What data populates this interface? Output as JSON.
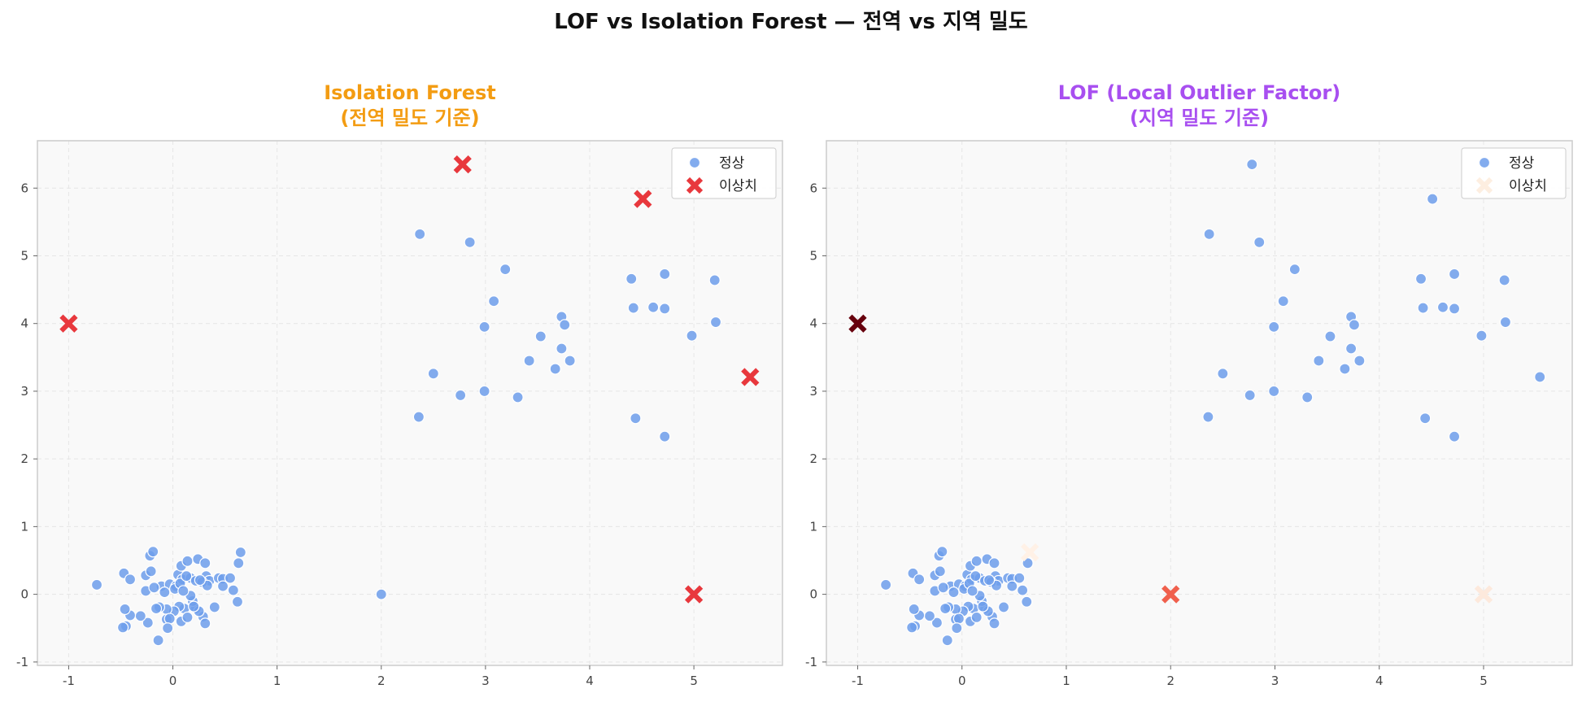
{
  "figure": {
    "suptitle": "LOF vs Isolation Forest — 전역 vs 지역 밀도"
  },
  "colors": {
    "normal": "#6d9eeb",
    "outlier": "#e8383d",
    "panel_bg": "#f9f9f9",
    "grid": "#e6e6e6",
    "frame": "#cccccc"
  },
  "chart_data": [
    {
      "type": "scatter",
      "title_line1": "Isolation Forest",
      "title_line2": "(전역 밀도 기준)",
      "title_color": "#f39c12",
      "xlim": [
        -1.3,
        5.85
      ],
      "ylim": [
        -1.05,
        6.7
      ],
      "xticks": [
        -1,
        0,
        1,
        2,
        3,
        4,
        5
      ],
      "yticks": [
        -1,
        0,
        1,
        2,
        3,
        4,
        5,
        6
      ],
      "grid": true,
      "legend": {
        "position": "top-right",
        "entries": [
          {
            "label": "정상",
            "marker": "circle",
            "color": "#6d9eeb"
          },
          {
            "label": "이상치",
            "marker": "x",
            "color": "#e8383d"
          }
        ]
      },
      "series": [
        {
          "name": "정상",
          "marker": "circle",
          "color": "#6d9eeb",
          "points": [
            [
              -0.73,
              0.14
            ],
            [
              -0.47,
              0.31
            ],
            [
              -0.41,
              0.22
            ],
            [
              -0.22,
              0.57
            ],
            [
              -0.19,
              0.63
            ],
            [
              -0.26,
              0.28
            ],
            [
              -0.21,
              0.34
            ],
            [
              -0.11,
              0.12
            ],
            [
              -0.03,
              0.15
            ],
            [
              0.03,
              0.12
            ],
            [
              0.05,
              0.29
            ],
            [
              0.08,
              0.42
            ],
            [
              0.09,
              0.22
            ],
            [
              0.14,
              0.49
            ],
            [
              0.17,
              0.24
            ],
            [
              0.24,
              0.52
            ],
            [
              0.31,
              0.46
            ],
            [
              0.32,
              0.27
            ],
            [
              0.35,
              0.2
            ],
            [
              0.44,
              0.24
            ],
            [
              0.48,
              0.23
            ],
            [
              0.55,
              0.24
            ],
            [
              0.63,
              0.46
            ],
            [
              0.65,
              0.62
            ],
            [
              -0.26,
              0.05
            ],
            [
              -0.08,
              0.03
            ],
            [
              0.02,
              0.08
            ],
            [
              0.07,
              0.16
            ],
            [
              0.13,
              0.27
            ],
            [
              0.22,
              0.2
            ],
            [
              0.28,
              0.18
            ],
            [
              0.33,
              0.13
            ],
            [
              0.48,
              0.12
            ],
            [
              0.58,
              0.06
            ],
            [
              0.62,
              -0.11
            ],
            [
              0.4,
              -0.19
            ],
            [
              0.29,
              -0.33
            ],
            [
              0.22,
              -0.21
            ],
            [
              0.19,
              -0.1
            ],
            [
              0.17,
              -0.02
            ],
            [
              0.11,
              -0.21
            ],
            [
              0.06,
              -0.18
            ],
            [
              0.01,
              -0.25
            ],
            [
              -0.06,
              -0.22
            ],
            [
              -0.13,
              -0.19
            ],
            [
              -0.16,
              -0.21
            ],
            [
              -0.24,
              -0.42
            ],
            [
              -0.31,
              -0.32
            ],
            [
              -0.41,
              -0.31
            ],
            [
              -0.46,
              -0.22
            ],
            [
              -0.45,
              -0.47
            ],
            [
              -0.48,
              -0.49
            ],
            [
              -0.06,
              -0.37
            ],
            [
              -0.03,
              -0.36
            ],
            [
              -0.05,
              -0.5
            ],
            [
              0.08,
              -0.4
            ],
            [
              0.14,
              -0.34
            ],
            [
              0.25,
              -0.25
            ],
            [
              0.31,
              -0.43
            ],
            [
              -0.14,
              -0.68
            ],
            [
              0.2,
              -0.18
            ],
            [
              0.26,
              0.21
            ],
            [
              0.1,
              0.05
            ],
            [
              -0.18,
              0.1
            ],
            [
              2.0,
              0.0
            ],
            [
              2.37,
              5.32
            ],
            [
              2.85,
              5.2
            ],
            [
              3.19,
              4.8
            ],
            [
              3.08,
              4.33
            ],
            [
              2.99,
              3.95
            ],
            [
              3.73,
              4.1
            ],
            [
              3.76,
              3.98
            ],
            [
              3.53,
              3.81
            ],
            [
              3.73,
              3.63
            ],
            [
              3.42,
              3.45
            ],
            [
              3.81,
              3.45
            ],
            [
              3.67,
              3.33
            ],
            [
              2.5,
              3.26
            ],
            [
              2.99,
              3.0
            ],
            [
              2.76,
              2.94
            ],
            [
              3.31,
              2.91
            ],
            [
              2.36,
              2.62
            ],
            [
              4.4,
              4.66
            ],
            [
              4.72,
              4.73
            ],
            [
              5.2,
              4.64
            ],
            [
              4.42,
              4.23
            ],
            [
              4.61,
              4.24
            ],
            [
              4.72,
              4.22
            ],
            [
              5.21,
              4.02
            ],
            [
              4.98,
              3.82
            ],
            [
              4.44,
              2.6
            ],
            [
              4.72,
              2.33
            ]
          ]
        },
        {
          "name": "이상치",
          "marker": "x",
          "color": "#e8383d",
          "points": [
            [
              -1.0,
              4.0
            ],
            [
              2.78,
              6.35
            ],
            [
              4.51,
              5.84
            ],
            [
              5.54,
              3.21
            ],
            [
              5.0,
              0.0
            ]
          ]
        }
      ]
    },
    {
      "type": "scatter",
      "title_line1": "LOF (Local Outlier Factor)",
      "title_line2": "(지역 밀도 기준)",
      "title_color": "#a84ff0",
      "xlim": [
        -1.3,
        5.85
      ],
      "ylim": [
        -1.05,
        6.7
      ],
      "xticks": [
        -1,
        0,
        1,
        2,
        3,
        4,
        5
      ],
      "yticks": [
        -1,
        0,
        1,
        2,
        3,
        4,
        5,
        6
      ],
      "grid": true,
      "legend": {
        "position": "top-right",
        "entries": [
          {
            "label": "정상",
            "marker": "circle",
            "color": "#6d9eeb"
          },
          {
            "label": "이상치",
            "marker": "x",
            "color": "#fdeee0"
          }
        ]
      },
      "series": [
        {
          "name": "정상",
          "marker": "circle",
          "color": "#6d9eeb",
          "points": [
            [
              -0.73,
              0.14
            ],
            [
              -0.47,
              0.31
            ],
            [
              -0.41,
              0.22
            ],
            [
              -0.22,
              0.57
            ],
            [
              -0.19,
              0.63
            ],
            [
              -0.26,
              0.28
            ],
            [
              -0.21,
              0.34
            ],
            [
              -0.11,
              0.12
            ],
            [
              -0.03,
              0.15
            ],
            [
              0.03,
              0.12
            ],
            [
              0.05,
              0.29
            ],
            [
              0.08,
              0.42
            ],
            [
              0.09,
              0.22
            ],
            [
              0.14,
              0.49
            ],
            [
              0.17,
              0.24
            ],
            [
              0.24,
              0.52
            ],
            [
              0.31,
              0.46
            ],
            [
              0.32,
              0.27
            ],
            [
              0.35,
              0.2
            ],
            [
              0.44,
              0.24
            ],
            [
              0.48,
              0.23
            ],
            [
              0.55,
              0.24
            ],
            [
              0.63,
              0.46
            ],
            [
              -0.26,
              0.05
            ],
            [
              -0.08,
              0.03
            ],
            [
              0.02,
              0.08
            ],
            [
              0.07,
              0.16
            ],
            [
              0.13,
              0.27
            ],
            [
              0.22,
              0.2
            ],
            [
              0.28,
              0.18
            ],
            [
              0.33,
              0.13
            ],
            [
              0.48,
              0.12
            ],
            [
              0.58,
              0.06
            ],
            [
              0.62,
              -0.11
            ],
            [
              0.4,
              -0.19
            ],
            [
              0.29,
              -0.33
            ],
            [
              0.22,
              -0.21
            ],
            [
              0.19,
              -0.1
            ],
            [
              0.17,
              -0.02
            ],
            [
              0.11,
              -0.21
            ],
            [
              0.06,
              -0.18
            ],
            [
              0.01,
              -0.25
            ],
            [
              -0.06,
              -0.22
            ],
            [
              -0.13,
              -0.19
            ],
            [
              -0.16,
              -0.21
            ],
            [
              -0.24,
              -0.42
            ],
            [
              -0.31,
              -0.32
            ],
            [
              -0.41,
              -0.31
            ],
            [
              -0.46,
              -0.22
            ],
            [
              -0.45,
              -0.47
            ],
            [
              -0.48,
              -0.49
            ],
            [
              -0.06,
              -0.37
            ],
            [
              -0.03,
              -0.36
            ],
            [
              -0.05,
              -0.5
            ],
            [
              0.08,
              -0.4
            ],
            [
              0.14,
              -0.34
            ],
            [
              0.25,
              -0.25
            ],
            [
              0.31,
              -0.43
            ],
            [
              -0.14,
              -0.68
            ],
            [
              0.2,
              -0.18
            ],
            [
              0.26,
              0.21
            ],
            [
              0.1,
              0.05
            ],
            [
              -0.18,
              0.1
            ],
            [
              2.37,
              5.32
            ],
            [
              2.85,
              5.2
            ],
            [
              3.19,
              4.8
            ],
            [
              3.08,
              4.33
            ],
            [
              2.99,
              3.95
            ],
            [
              3.73,
              4.1
            ],
            [
              3.76,
              3.98
            ],
            [
              3.53,
              3.81
            ],
            [
              3.73,
              3.63
            ],
            [
              3.42,
              3.45
            ],
            [
              3.81,
              3.45
            ],
            [
              3.67,
              3.33
            ],
            [
              2.5,
              3.26
            ],
            [
              2.99,
              3.0
            ],
            [
              2.76,
              2.94
            ],
            [
              3.31,
              2.91
            ],
            [
              2.36,
              2.62
            ],
            [
              4.4,
              4.66
            ],
            [
              4.72,
              4.73
            ],
            [
              5.2,
              4.64
            ],
            [
              4.42,
              4.23
            ],
            [
              4.61,
              4.24
            ],
            [
              4.72,
              4.22
            ],
            [
              5.21,
              4.02
            ],
            [
              4.98,
              3.82
            ],
            [
              4.44,
              2.6
            ],
            [
              4.72,
              2.33
            ],
            [
              2.78,
              6.35
            ],
            [
              4.51,
              5.84
            ],
            [
              5.54,
              3.21
            ]
          ]
        },
        {
          "name": "이상치",
          "marker": "x",
          "color_by_score": true,
          "points": [
            {
              "x": -1.0,
              "y": 4.0,
              "color": "#67000d"
            },
            {
              "x": 2.0,
              "y": 0.0,
              "color": "#f0604d"
            },
            {
              "x": 0.65,
              "y": 0.62,
              "color": "#fff1e6"
            },
            {
              "x": 5.0,
              "y": 0.0,
              "color": "#fde9dc"
            }
          ]
        }
      ]
    }
  ]
}
